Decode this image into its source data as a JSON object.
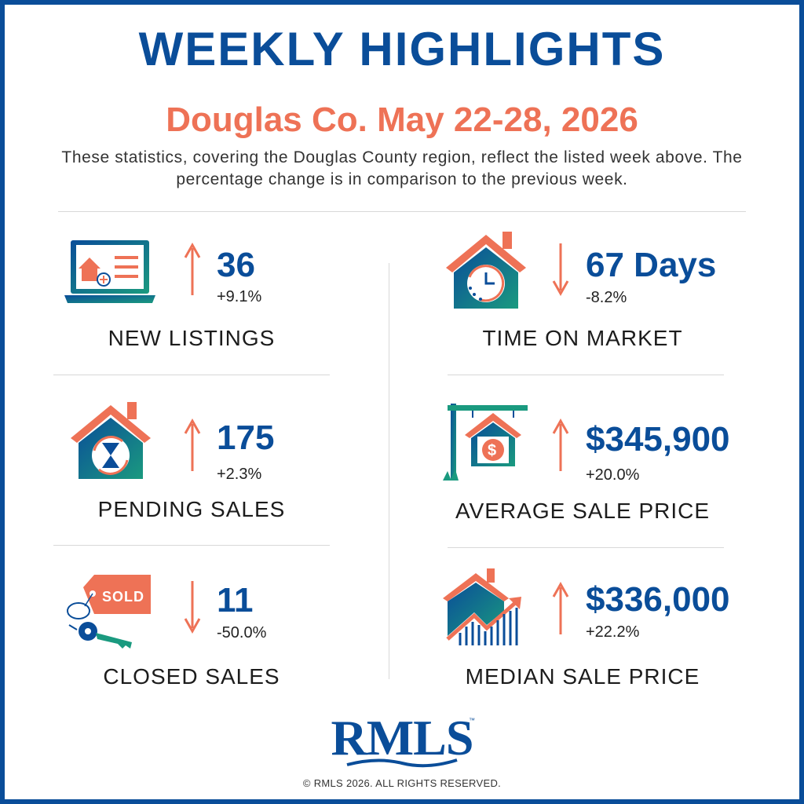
{
  "header": {
    "title": "WEEKLY HIGHLIGHTS",
    "subtitle": "Douglas Co. May 22-28, 2026",
    "description": "These statistics, covering the Douglas County region, reflect the listed week above. The percentage change is in comparison to the previous week."
  },
  "stats": {
    "new_listings": {
      "value": "36",
      "change": "+9.1%",
      "label": "NEW LISTINGS",
      "direction": "up",
      "icon": "laptop-house-icon"
    },
    "pending_sales": {
      "value": "175",
      "change": "+2.3%",
      "label": "PENDING SALES",
      "direction": "up",
      "icon": "house-hourglass-icon"
    },
    "closed_sales": {
      "value": "11",
      "change": "-50.0%",
      "label": "CLOSED SALES",
      "direction": "down",
      "icon": "sold-tag-keys-icon"
    },
    "time_on_market": {
      "value": "67 Days",
      "change": "-8.2%",
      "label": "TIME ON MARKET",
      "direction": "down",
      "icon": "house-clock-icon"
    },
    "average_sale_price": {
      "value": "$345,900",
      "change": "+20.0%",
      "label": "AVERAGE SALE PRICE",
      "direction": "up",
      "icon": "house-sign-dollar-icon"
    },
    "median_sale_price": {
      "value": "$336,000",
      "change": "+22.2%",
      "label": "MEDIAN SALE PRICE",
      "direction": "up",
      "icon": "house-chart-icon"
    }
  },
  "footer": {
    "logo_text": "RMLS",
    "trademark": "™",
    "copyright": "© RMLS 2026. ALL RIGHTS RESERVED."
  },
  "colors": {
    "brand_blue": "#0a4d99",
    "accent_coral": "#ee7256",
    "teal": "#1a9a7f"
  }
}
